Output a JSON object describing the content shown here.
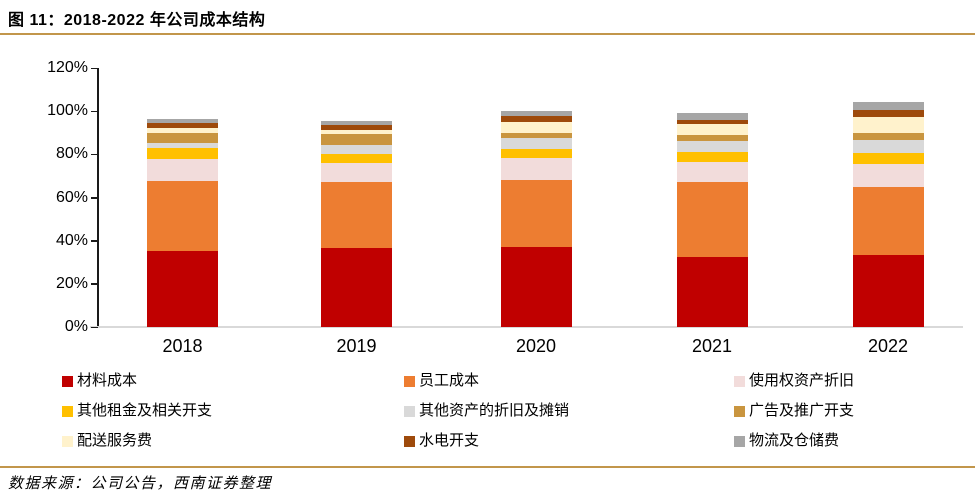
{
  "title": "图 11：2018-2022 年公司成本结构",
  "footer": {
    "source_note": "数据来源：公司公告，西南证券整理"
  },
  "colors": {
    "divider": "#C2964B",
    "y_axis_line": "#1a1a1a",
    "x_baseline": "#D9D9D9"
  },
  "chart_data": {
    "type": "bar",
    "stacked": true,
    "title": "图 11：2018-2022 年公司成本结构",
    "categories": [
      "2018",
      "2019",
      "2020",
      "2021",
      "2022"
    ],
    "series": [
      {
        "name": "材料成本",
        "color": "#C00000",
        "values": [
          35,
          36.5,
          37,
          32.5,
          33.5
        ]
      },
      {
        "name": "员工成本",
        "color": "#ED7D31",
        "values": [
          32.5,
          30.5,
          31,
          34.5,
          31.5
        ]
      },
      {
        "name": "使用权资产折旧",
        "color": "#F2DCDB",
        "values": [
          10.5,
          9,
          10.5,
          9.5,
          10.5
        ]
      },
      {
        "name": "其他租金及相关开支",
        "color": "#FFC000",
        "values": [
          5,
          4,
          4,
          4.5,
          5
        ]
      },
      {
        "name": "其他资产的折旧及摊销",
        "color": "#D9D9D9",
        "values": [
          2.5,
          4.5,
          5,
          5,
          6
        ]
      },
      {
        "name": "广告及推广开支",
        "color": "#C9953F",
        "values": [
          4.5,
          5,
          2.5,
          3,
          3.5
        ]
      },
      {
        "name": "配送服务费",
        "color": "#FFF2CC",
        "values": [
          2,
          2,
          5,
          5,
          7.5
        ]
      },
      {
        "name": "水电开支",
        "color": "#9E4A0B",
        "values": [
          2.5,
          2,
          3,
          2,
          3
        ]
      },
      {
        "name": "物流及仓储费",
        "color": "#A6A6A6",
        "values": [
          2,
          2,
          2,
          3,
          4
        ]
      }
    ],
    "xlabel": "",
    "ylabel": "",
    "y_ticks": [
      "0%",
      "20%",
      "40%",
      "60%",
      "80%",
      "100%",
      "120%"
    ],
    "ylim": [
      0,
      120
    ],
    "grid": false,
    "legend_position": "bottom"
  }
}
